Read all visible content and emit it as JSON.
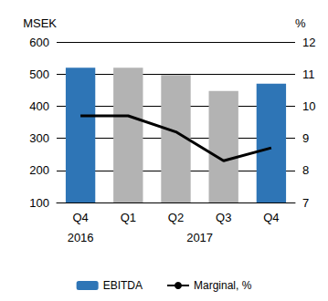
{
  "chart_data": {
    "type": "bar",
    "categories": [
      "Q4",
      "Q1",
      "Q2",
      "Q3",
      "Q4"
    ],
    "year_labels": [
      {
        "label": "2016",
        "start": 0,
        "end": 0
      },
      {
        "label": "2017",
        "start": 1,
        "end": 4
      }
    ],
    "ylabel": "MSEK",
    "y2label": "%",
    "ylim": [
      100,
      600
    ],
    "yticks": [
      100,
      200,
      300,
      400,
      500,
      600
    ],
    "y2lim": [
      7,
      12
    ],
    "y2ticks": [
      7,
      8,
      9,
      10,
      11,
      12
    ],
    "grid": true,
    "legend": "bottom",
    "series": [
      {
        "name": "EBITDA",
        "type": "bar",
        "color": "#2e75b6",
        "colors": [
          "#2e75b6",
          "#b3b3b3",
          "#b3b3b3",
          "#b3b3b3",
          "#2e75b6"
        ],
        "values": [
          520,
          520,
          497,
          447,
          470
        ]
      },
      {
        "name": "Marginal, %",
        "type": "line",
        "axis": "y2",
        "color": "#000000",
        "values": [
          9.7,
          9.7,
          9.2,
          8.3,
          8.7
        ]
      }
    ]
  }
}
